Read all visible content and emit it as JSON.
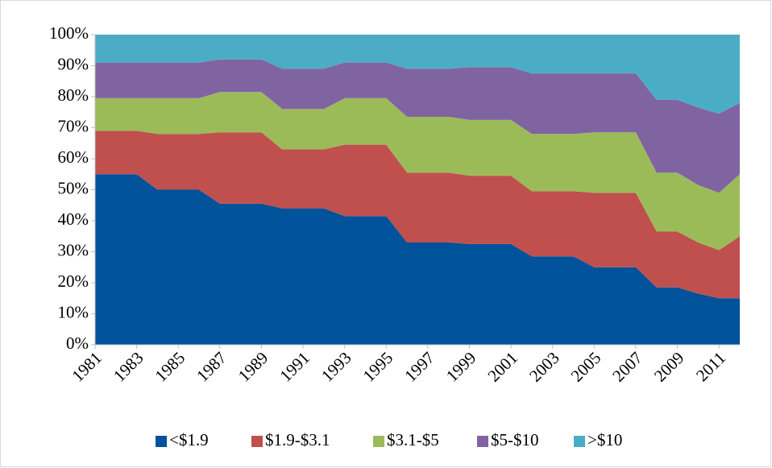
{
  "chart_data": {
    "type": "stacked_area",
    "x": [
      1981,
      1982,
      1983,
      1984,
      1985,
      1986,
      1987,
      1988,
      1989,
      1990,
      1991,
      1992,
      1993,
      1994,
      1995,
      1996,
      1997,
      1998,
      1999,
      2000,
      2001,
      2002,
      2003,
      2004,
      2005,
      2006,
      2007,
      2008,
      2009,
      2010,
      2011,
      2012
    ],
    "xlim": [
      1981,
      2012
    ],
    "xticks": [
      1981,
      1983,
      1985,
      1987,
      1989,
      1991,
      1993,
      1995,
      1997,
      1999,
      2001,
      2003,
      2005,
      2007,
      2009,
      2011
    ],
    "ylim": [
      0,
      100
    ],
    "yticks": [
      {
        "value": 0,
        "label": "0%"
      },
      {
        "value": 10,
        "label": "10%"
      },
      {
        "value": 20,
        "label": "20%"
      },
      {
        "value": 30,
        "label": "30%"
      },
      {
        "value": 40,
        "label": "40%"
      },
      {
        "value": 50,
        "label": "50%"
      },
      {
        "value": 60,
        "label": "60%"
      },
      {
        "value": 70,
        "label": "70%"
      },
      {
        "value": 80,
        "label": "80%"
      },
      {
        "value": 90,
        "label": "90%"
      },
      {
        "value": 100,
        "label": "100%"
      }
    ],
    "legend": "bottom",
    "series": [
      {
        "name": "<$1.9",
        "color": "#00529b",
        "values": [
          55,
          55,
          55,
          50,
          50,
          50,
          45.5,
          45.5,
          45.5,
          44,
          44,
          44,
          41.5,
          41.5,
          41.5,
          33,
          33,
          33,
          32.5,
          32.5,
          32.5,
          28.5,
          28.5,
          28.5,
          25,
          25,
          25,
          18.5,
          18.5,
          16.5,
          15,
          15
        ]
      },
      {
        "name": "$1.9-$3.1",
        "color": "#c0504d",
        "values": [
          14,
          14,
          14,
          18,
          18,
          18,
          23,
          23,
          23,
          19,
          19,
          19,
          23,
          23,
          23,
          22.5,
          22.5,
          22.5,
          22,
          22,
          22,
          21,
          21,
          21,
          24,
          24,
          24,
          18,
          18,
          16.5,
          15.5,
          20
        ]
      },
      {
        "name": "$3.1-$5",
        "color": "#9bbb59",
        "values": [
          10.5,
          10.5,
          10.5,
          11.5,
          11.5,
          11.5,
          13,
          13,
          13,
          13,
          13,
          13,
          15,
          15,
          15,
          18,
          18,
          18,
          18,
          18,
          18,
          18.5,
          18.5,
          18.5,
          19.5,
          19.5,
          19.5,
          19,
          19,
          18.5,
          18.5,
          20
        ]
      },
      {
        "name": "$5-$10",
        "color": "#8064a2",
        "values": [
          11.5,
          11.5,
          11.5,
          11.5,
          11.5,
          11.5,
          10.5,
          10.5,
          10.5,
          13,
          13,
          13,
          11.5,
          11.5,
          11.5,
          15.5,
          15.5,
          15.5,
          17,
          17,
          17,
          19.5,
          19.5,
          19.5,
          19,
          19,
          19,
          23.5,
          23.5,
          25,
          25.5,
          23
        ]
      },
      {
        "name": ">$10",
        "color": "#4bacc6",
        "values": [
          9,
          9,
          9,
          9,
          9,
          9,
          8,
          8,
          8,
          11,
          11,
          11,
          9,
          9,
          9,
          11,
          11,
          11,
          10.5,
          10.5,
          10.5,
          12.5,
          12.5,
          12.5,
          12.5,
          12.5,
          12.5,
          21,
          21,
          23.5,
          25.5,
          22
        ]
      }
    ]
  }
}
